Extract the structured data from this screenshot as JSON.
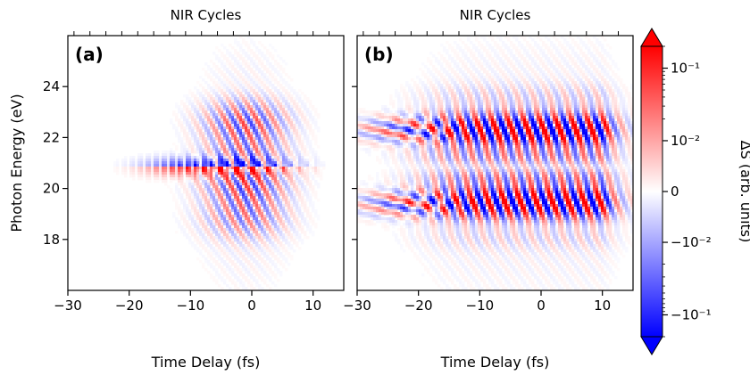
{
  "chart_data": {
    "type": "heatmap",
    "colormap": "bwr",
    "colorbar": {
      "label": "ΔS (arb. units)",
      "scale": "symlog",
      "ticks": [
        {
          "value": 0.1,
          "label": "10⁻¹"
        },
        {
          "value": 0.01,
          "label": "10⁻²"
        },
        {
          "value": 0,
          "label": "0"
        },
        {
          "value": -0.01,
          "label": "−10⁻²"
        },
        {
          "value": -0.1,
          "label": "−10⁻¹"
        }
      ],
      "colors": {
        "max": "#ff0000",
        "zero": "#ffffff",
        "min": "#0000ff"
      }
    },
    "panels": [
      {
        "letter": "(a)",
        "top_label": "NIR Cycles",
        "xlabel": "Time Delay (fs)",
        "ylabel": "Photon Energy (eV)",
        "xlim": [
          -30,
          15
        ],
        "ylim": [
          16,
          26
        ],
        "xticks": [
          -30,
          -20,
          -10,
          0,
          10
        ],
        "yticks": [
          18,
          20,
          22,
          24
        ]
      },
      {
        "letter": "(b)",
        "top_label": "NIR Cycles",
        "xlabel": "Time Delay (fs)",
        "ylabel": "",
        "xlim": [
          -30,
          15
        ],
        "ylim": [
          16,
          26
        ],
        "xticks": [
          -30,
          -20,
          -10,
          0,
          10
        ],
        "yticks": [
          18,
          20,
          22,
          24
        ]
      }
    ]
  }
}
